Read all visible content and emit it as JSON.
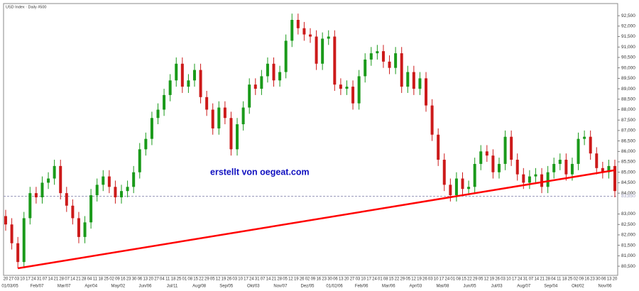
{
  "chart_data": {
    "type": "candlestick",
    "title": "USD Index · Daily #500",
    "annotation": "erstellt von oegeat.com",
    "up_color": "#1a9a1a",
    "down_color": "#cc1a1a",
    "open": [
      82.9,
      82.5,
      81.6,
      80.7,
      82.8,
      84.0,
      83.8,
      84.5,
      84.7,
      85.3,
      84.0,
      83.4,
      82.8,
      81.9,
      82.6,
      83.9,
      84.4,
      84.8,
      84.3,
      83.8,
      84.1,
      84.3,
      85.0,
      86.1,
      86.6,
      87.6,
      88.0,
      88.7,
      89.4,
      90.2,
      89.1,
      89.4,
      89.9,
      88.6,
      88.0,
      87.1,
      88.1,
      87.6,
      86.1,
      87.3,
      88.1,
      89.2,
      89.0,
      89.6,
      90.2,
      89.4,
      89.8,
      91.3,
      92.3,
      91.9,
      91.6,
      91.5,
      90.2,
      91.4,
      91.5,
      89.2,
      89.0,
      89.1,
      88.3,
      89.6,
      90.4,
      90.7,
      90.8,
      90.3,
      90.0,
      90.7,
      89.1,
      89.8,
      89.0,
      89.5,
      88.2,
      86.8,
      85.6,
      84.4,
      83.9,
      84.7,
      84.2,
      84.3,
      85.4,
      86.0,
      85.8,
      85.0,
      85.4,
      86.7,
      85.6,
      84.9,
      84.5,
      84.8,
      84.9,
      84.3,
      85.0,
      85.4,
      85.6,
      84.9,
      85.4,
      86.6,
      86.7,
      85.9,
      85.2,
      85.0,
      85.3
    ],
    "high": [
      83.2,
      82.8,
      81.9,
      83.1,
      84.3,
      84.3,
      84.8,
      85.0,
      85.6,
      85.6,
      84.3,
      83.7,
      83.1,
      82.9,
      84.2,
      84.7,
      85.1,
      85.1,
      84.6,
      84.4,
      84.6,
      85.3,
      86.4,
      86.9,
      87.9,
      88.3,
      89.0,
      89.7,
      90.5,
      90.5,
      89.7,
      90.2,
      90.2,
      88.9,
      88.3,
      88.4,
      88.4,
      87.9,
      87.6,
      88.4,
      89.5,
      89.5,
      89.9,
      90.5,
      90.5,
      90.1,
      91.6,
      92.6,
      92.6,
      92.2,
      91.9,
      91.8,
      91.7,
      91.8,
      91.8,
      89.5,
      89.4,
      89.4,
      89.9,
      90.7,
      91.0,
      91.1,
      91.1,
      90.6,
      91.0,
      91.0,
      90.1,
      90.1,
      89.8,
      89.8,
      88.5,
      87.1,
      85.9,
      84.7,
      85.0,
      85.0,
      84.6,
      85.7,
      86.3,
      86.3,
      86.1,
      85.7,
      87.0,
      87.0,
      85.9,
      85.2,
      85.1,
      85.2,
      85.2,
      85.3,
      85.7,
      85.9,
      85.9,
      85.7,
      86.9,
      87.0,
      87.0,
      86.2,
      85.5,
      85.6,
      85.6
    ],
    "low": [
      82.2,
      81.3,
      80.4,
      80.4,
      82.5,
      83.5,
      83.5,
      84.2,
      84.4,
      83.7,
      83.1,
      82.5,
      81.6,
      81.6,
      82.3,
      83.6,
      84.1,
      84.0,
      83.5,
      83.5,
      83.8,
      84.0,
      84.7,
      85.8,
      86.3,
      87.3,
      87.7,
      88.4,
      89.1,
      88.8,
      88.8,
      89.1,
      88.3,
      87.7,
      86.8,
      86.8,
      87.3,
      85.8,
      85.8,
      87.0,
      87.8,
      88.7,
      88.7,
      89.3,
      89.1,
      89.1,
      89.5,
      91.0,
      91.6,
      91.3,
      91.2,
      89.9,
      89.9,
      91.1,
      88.9,
      88.7,
      88.7,
      88.0,
      88.0,
      89.3,
      90.1,
      90.4,
      90.0,
      89.7,
      89.7,
      88.8,
      88.8,
      88.7,
      88.7,
      87.9,
      86.5,
      85.3,
      84.1,
      83.6,
      83.6,
      83.9,
      83.9,
      84.0,
      85.1,
      85.5,
      84.7,
      84.7,
      85.1,
      85.3,
      84.6,
      84.2,
      84.2,
      84.5,
      84.0,
      84.0,
      84.7,
      85.1,
      84.6,
      84.6,
      85.1,
      86.3,
      85.6,
      84.9,
      84.7,
      84.7,
      83.8
    ],
    "close": [
      82.5,
      81.6,
      80.7,
      82.8,
      84.0,
      83.8,
      84.5,
      84.7,
      85.3,
      84.0,
      83.4,
      82.8,
      81.9,
      82.6,
      83.9,
      84.4,
      84.8,
      84.3,
      83.8,
      84.1,
      84.3,
      85.0,
      86.1,
      86.6,
      87.6,
      88.0,
      88.7,
      89.4,
      90.2,
      89.1,
      89.4,
      89.9,
      88.6,
      88.0,
      87.1,
      88.1,
      87.6,
      86.1,
      87.3,
      88.1,
      89.2,
      89.0,
      89.6,
      90.2,
      89.4,
      89.8,
      91.3,
      92.3,
      91.9,
      91.6,
      91.5,
      90.2,
      91.4,
      91.5,
      89.2,
      89.0,
      89.1,
      88.3,
      89.6,
      90.4,
      90.7,
      90.8,
      90.3,
      90.0,
      90.7,
      89.1,
      89.8,
      89.0,
      89.5,
      88.2,
      86.8,
      85.6,
      84.4,
      83.9,
      84.7,
      84.2,
      84.3,
      85.4,
      86.0,
      85.8,
      85.0,
      85.4,
      86.7,
      85.6,
      84.9,
      84.5,
      84.8,
      84.9,
      84.3,
      85.0,
      85.4,
      85.6,
      84.9,
      85.4,
      86.6,
      86.7,
      85.9,
      85.2,
      85.0,
      85.3,
      84.1
    ],
    "trendline": {
      "color": "#ff0000",
      "x": [
        2,
        100
      ],
      "values": [
        80.4,
        85.1
      ]
    },
    "reference_line": {
      "value": 83.85,
      "label": "83,850",
      "color": "#9999bb"
    },
    "ylim": [
      80.06,
      92.98
    ],
    "yticks": [
      {
        "value": 80.5,
        "label": "80,500"
      },
      {
        "value": 81,
        "label": "81,000"
      },
      {
        "value": 81.5,
        "label": "81,500"
      },
      {
        "value": 82,
        "label": "82,000"
      },
      {
        "value": 82.5,
        "label": "82,500"
      },
      {
        "value": 83,
        "label": "83,000"
      },
      {
        "value": 84,
        "label": "84,000"
      },
      {
        "value": 84.5,
        "label": "84,500"
      },
      {
        "value": 85,
        "label": "85,000"
      },
      {
        "value": 85.5,
        "label": "85,500"
      },
      {
        "value": 86,
        "label": "86,000"
      },
      {
        "value": 86.5,
        "label": "86,500"
      },
      {
        "value": 87,
        "label": "87,000"
      },
      {
        "value": 87.5,
        "label": "87,500"
      },
      {
        "value": 88,
        "label": "88,000"
      },
      {
        "value": 88.5,
        "label": "88,500"
      },
      {
        "value": 89,
        "label": "89,000"
      },
      {
        "value": 89.5,
        "label": "89,500"
      },
      {
        "value": 90,
        "label": "90,000"
      },
      {
        "value": 90.5,
        "label": "90,500"
      },
      {
        "value": 91,
        "label": "91,000"
      },
      {
        "value": 91.5,
        "label": "91,500"
      },
      {
        "value": 92,
        "label": "92,000"
      },
      {
        "value": 92.5,
        "label": "92,500"
      }
    ],
    "x_day_labels": [
      "20",
      "27",
      "03",
      "10",
      "17",
      "24",
      "31",
      "07",
      "14",
      "21",
      "28",
      "07",
      "14",
      "21",
      "28",
      "04",
      "11",
      "18",
      "25",
      "02",
      "09",
      "16",
      "23",
      "30",
      "06",
      "13",
      "20",
      "27",
      "04",
      "11",
      "18",
      "25",
      "01",
      "08",
      "15",
      "22",
      "29",
      "05",
      "12",
      "19",
      "26",
      "03",
      "10",
      "17",
      "24",
      "31",
      "07",
      "14",
      "21",
      "28",
      "05",
      "12",
      "19",
      "26",
      "02",
      "09",
      "16",
      "23",
      "30",
      "06",
      "13",
      "20",
      "27",
      "03",
      "10",
      "17",
      "24",
      "01",
      "08",
      "15",
      "22",
      "29",
      "05",
      "12",
      "19",
      "26",
      "03",
      "10",
      "17",
      "24",
      "01",
      "08",
      "15",
      "22",
      "29",
      "05",
      "12",
      "19",
      "26",
      "03",
      "10",
      "17",
      "24",
      "31",
      "07",
      "14",
      "21",
      "28",
      "04",
      "11",
      "18",
      "25",
      "02",
      "09",
      "16",
      "23",
      "30",
      "06",
      "13",
      "20"
    ],
    "x_month_labels": [
      "01/03/05",
      "Feb/07",
      "Mar/07",
      "Apr/04",
      "May/02",
      "Jun/06",
      "Jul/11",
      "Aug/08",
      "Sep/05",
      "Okt/03",
      "Nov/07",
      "Dez/05",
      "01/02/06",
      "Feb/06",
      "Mar/06",
      "Apr/03",
      "Mai/08",
      "Jun/05",
      "Jul/03",
      "Aug/07",
      "Sep/04",
      "Okt/02",
      "Nov/06"
    ]
  }
}
